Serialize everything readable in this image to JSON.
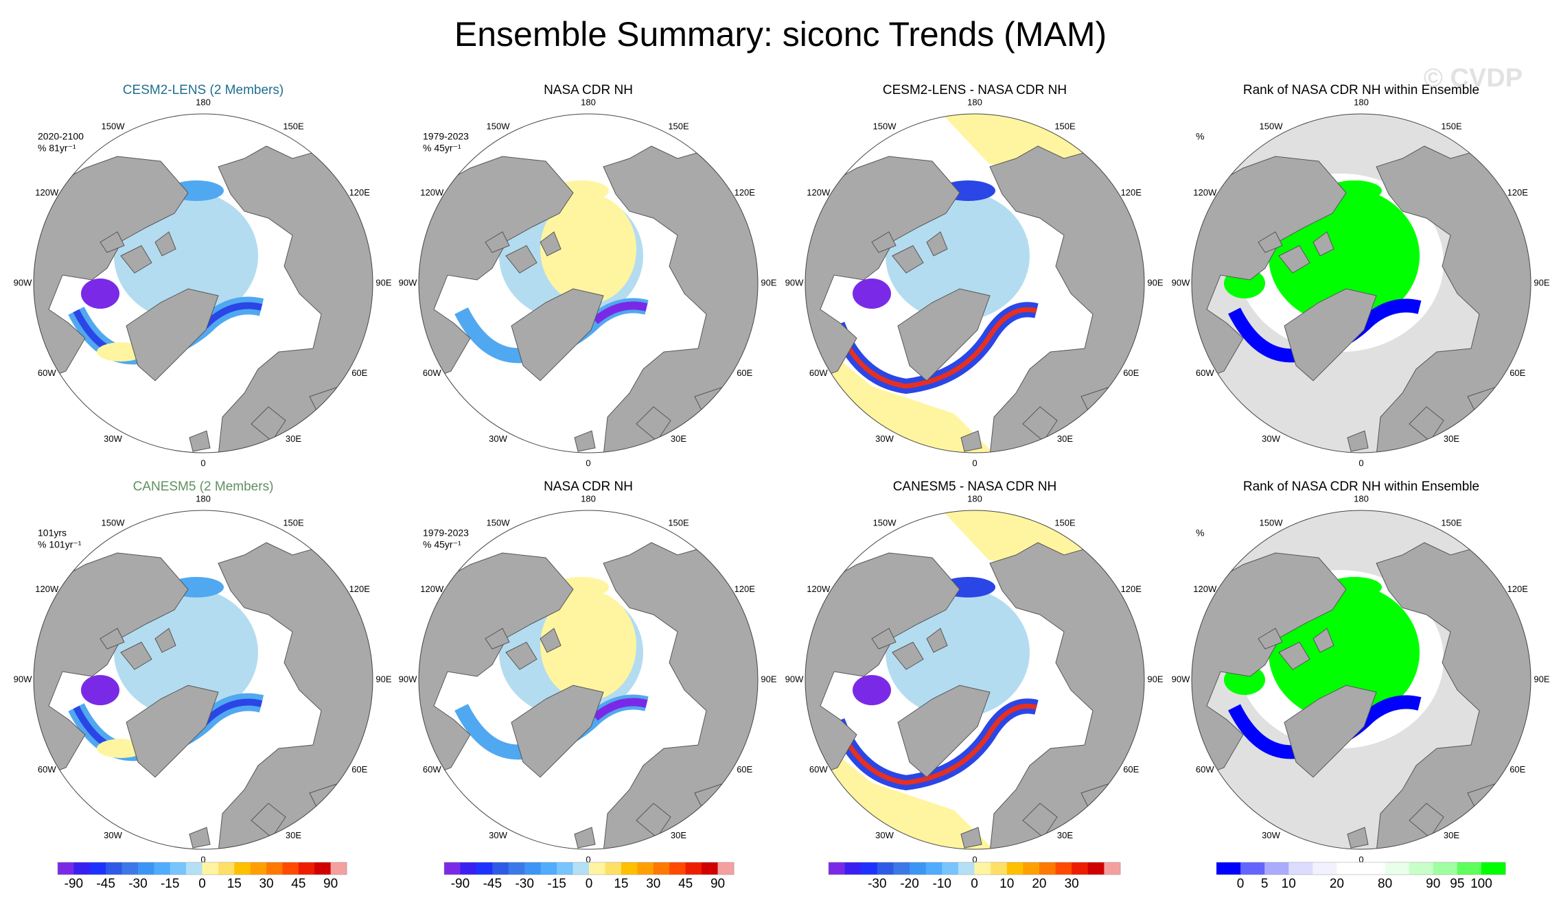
{
  "title": "Ensemble Summary: siconc Trends (MAM)",
  "watermark": "© CVDP",
  "longitude_labels": [
    "180",
    "150E",
    "120E",
    "90E",
    "60E",
    "30E",
    "0",
    "30W",
    "60W",
    "90W",
    "120W",
    "150W"
  ],
  "panels": [
    {
      "title": "CESM2-LENS (2 Members)",
      "title_color": "#1f6f8f",
      "annotation": [
        "2020-2100",
        "% 81yr⁻¹"
      ]
    },
    {
      "title": "NASA CDR NH",
      "title_color": "#000000",
      "annotation": [
        "1979-2023",
        "% 45yr⁻¹"
      ]
    },
    {
      "title": "CESM2-LENS - NASA CDR NH",
      "title_color": "#000000",
      "annotation": []
    },
    {
      "title": "Rank of NASA CDR NH within Ensemble",
      "title_color": "#000000",
      "annotation": [
        "%"
      ]
    },
    {
      "title": "CANESM5 (2 Members)",
      "title_color": "#5f9060",
      "annotation": [
        "101yrs",
        "% 101yr⁻¹"
      ]
    },
    {
      "title": "NASA CDR NH",
      "title_color": "#000000",
      "annotation": [
        "1979-2023",
        "% 45yr⁻¹"
      ]
    },
    {
      "title": "CANESM5 - NASA CDR NH",
      "title_color": "#000000",
      "annotation": []
    },
    {
      "title": "Rank of NASA CDR NH within Ensemble",
      "title_color": "#000000",
      "annotation": [
        "%"
      ]
    }
  ],
  "colorbars": [
    {
      "colors": [
        "#7a2ae6",
        "#3a20f0",
        "#1e32ff",
        "#2e5ae6",
        "#3c78e8",
        "#3c94f4",
        "#50acff",
        "#78c4ff",
        "#b4e0f5",
        "#fff5a0",
        "#ffe066",
        "#ffc000",
        "#ffa000",
        "#ff7800",
        "#ff4a00",
        "#ee1c00",
        "#d00000",
        "#f4a0a0"
      ],
      "ticks": [
        -90,
        -45,
        -30,
        -15,
        0,
        15,
        30,
        45,
        90
      ]
    },
    {
      "colors": [
        "#7a2ae6",
        "#3a20f0",
        "#1e32ff",
        "#2e5ae6",
        "#3c78e8",
        "#3c94f4",
        "#50acff",
        "#78c4ff",
        "#b4e0f5",
        "#fff5a0",
        "#ffe066",
        "#ffc000",
        "#ffa000",
        "#ff7800",
        "#ff4a00",
        "#ee1c00",
        "#d00000",
        "#f4a0a0"
      ],
      "ticks": [
        -90,
        -45,
        -30,
        -15,
        0,
        15,
        30,
        45,
        90
      ]
    },
    {
      "colors": [
        "#7a2ae6",
        "#3a20f0",
        "#1e32ff",
        "#2e5ae6",
        "#3c78e8",
        "#3c94f4",
        "#50acff",
        "#78c4ff",
        "#b4e0f5",
        "#fff5a0",
        "#ffe066",
        "#ffc000",
        "#ffa000",
        "#ff7800",
        "#ff4a00",
        "#ee1c00",
        "#d00000",
        "#f4a0a0"
      ],
      "ticks": [
        -30,
        -20,
        -10,
        0,
        10,
        20,
        30
      ]
    },
    {
      "colors": [
        "#0000ff",
        "#6464ff",
        "#aaaaff",
        "#dcdcff",
        "#f2f2ff",
        "#ffffff",
        "#ffffff",
        "#eaffea",
        "#c8ffc8",
        "#a0ffa0",
        "#5cff5c",
        "#00ff00"
      ],
      "ticks": [
        0,
        5,
        10,
        20,
        80,
        90,
        95,
        100
      ]
    }
  ]
}
